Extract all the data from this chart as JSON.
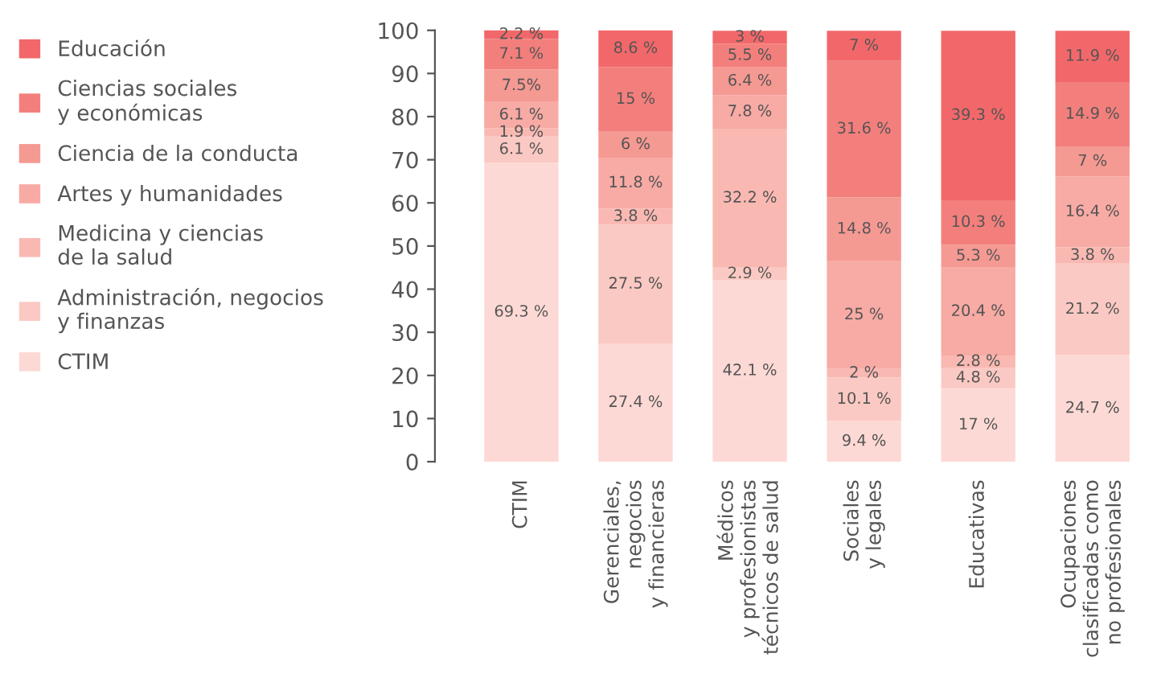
{
  "chart_data": {
    "type": "bar",
    "stacked": true,
    "categories": [
      "CTIM",
      "Gerenciales,\nnegocios\ny financieras",
      "Médicos\ny profesionistas\ntécnicos de salud",
      "Sociales\ny legales",
      "Educativas",
      "Ocupaciones\nclasificadas como\nno profesionales"
    ],
    "series": [
      {
        "name": "CTIM",
        "color": "#fdd9d5",
        "values": [
          69.3,
          27.4,
          42.1,
          9.4,
          17,
          24.7
        ],
        "value_labels": [
          "69.3 %",
          "27.4 %",
          "42.1 %",
          "9.4 %",
          "17 %",
          "24.7 %"
        ]
      },
      {
        "name": "Administración, negocios\ny finanzas",
        "color": "#fbc9c3",
        "values": [
          6.1,
          27.5,
          2.9,
          10.1,
          4.8,
          21.2
        ],
        "value_labels": [
          "6.1 %",
          "27.5 %",
          "2.9 %",
          "10.1 %",
          "4.8 %",
          "21.2 %"
        ]
      },
      {
        "name": "Medicina y ciencias\nde la salud",
        "color": "#f9b9b2",
        "values": [
          1.9,
          3.8,
          32.2,
          2,
          2.8,
          3.8
        ],
        "value_labels": [
          "1.9 %",
          "3.8 %",
          "32.2 %",
          "2 %",
          "2.8 %",
          "3.8 %"
        ]
      },
      {
        "name": "Artes y humanidades",
        "color": "#f8aaa4",
        "values": [
          6.1,
          11.8,
          7.8,
          25,
          20.4,
          16.4
        ],
        "value_labels": [
          "6.1 %",
          "11.8 %",
          "7.8 %",
          "25 %",
          "20.4 %",
          "16.4 %"
        ]
      },
      {
        "name": "Ciencia de la conducta",
        "color": "#f59993",
        "values": [
          7.5,
          6,
          6.4,
          14.8,
          5.3,
          7
        ],
        "value_labels": [
          "7.5%",
          "6 %",
          "6.4 %",
          "14.8 %",
          "5.3 %",
          "7 %"
        ]
      },
      {
        "name": "Ciencias sociales\ny económicas",
        "color": "#f37f7c",
        "values": [
          7.1,
          15,
          5.5,
          31.6,
          10.3,
          14.9
        ],
        "value_labels": [
          "7.1 %",
          "15 %",
          "5.5 %",
          "31.6 %",
          "10.3 %",
          "14.9 %"
        ]
      },
      {
        "name": "Educación",
        "color": "#f2686a",
        "values": [
          2.2,
          8.6,
          3,
          7,
          39.3,
          11.9
        ],
        "value_labels": [
          "2.2 %",
          "8.6 %",
          "3 %",
          "7 %",
          "39.3 %",
          "11.9 %"
        ]
      }
    ],
    "ylim": [
      0,
      100
    ],
    "yticks": [
      0,
      10,
      20,
      30,
      40,
      50,
      60,
      70,
      80,
      90,
      100
    ],
    "grid": false,
    "legend": "left"
  }
}
